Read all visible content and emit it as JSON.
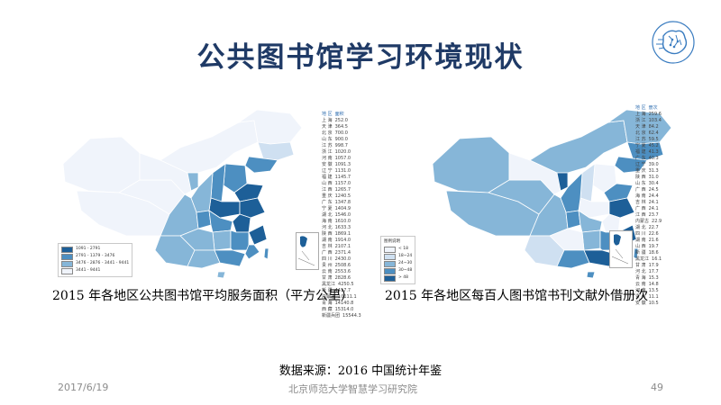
{
  "title": "公共图书馆学习环境现状",
  "colors": {
    "title": "#1f3a66",
    "shade_1": "#f0f4fb",
    "shade_2": "#cfe0f1",
    "shade_3": "#86b6d8",
    "shade_4": "#4d8fc1",
    "shade_5": "#1d5f98",
    "border": "#ffffff"
  },
  "map_left": {
    "caption": "2015 年各地区公共图书馆平均服务面积（平方公里）",
    "table_header": [
      "地 区",
      "面积"
    ],
    "table_rows": [
      [
        "上 海",
        "252.0"
      ],
      [
        "天 津",
        "364.5"
      ],
      [
        "北 京",
        "700.0"
      ],
      [
        "山 东",
        "900.0"
      ],
      [
        "江 苏",
        "998.7"
      ],
      [
        "浙 江",
        "1020.0"
      ],
      [
        "河 南",
        "1057.0"
      ],
      [
        "安 徽",
        "1091.3"
      ],
      [
        "辽 宁",
        "1131.0"
      ],
      [
        "福 建",
        "1145.7"
      ],
      [
        "山 西",
        "1157.0"
      ],
      [
        "江 西",
        "1265.7"
      ],
      [
        "重 庆",
        "1240.5"
      ],
      [
        "广 东",
        "1347.8"
      ],
      [
        "宁 夏",
        "1404.9"
      ],
      [
        "湖 北",
        "1546.0"
      ],
      [
        "海 南",
        "1610.0"
      ],
      [
        "河 北",
        "1633.3"
      ],
      [
        "陕 西",
        "1869.1"
      ],
      [
        "湖 南",
        "1914.0"
      ],
      [
        "吉 林",
        "2107.1"
      ],
      [
        "广 西",
        "2371.4"
      ],
      [
        "四 川",
        "2430.0"
      ],
      [
        "贵 州",
        "2508.6"
      ],
      [
        "云 南",
        "2553.6"
      ],
      [
        "甘 肃",
        "2828.6"
      ],
      [
        "黑龙江",
        "4250.5"
      ],
      [
        "新 疆",
        "4417.7"
      ],
      [
        "内蒙古",
        "10111.1"
      ],
      [
        "青 海",
        "14140.8"
      ],
      [
        "西 藏",
        "15314.0"
      ],
      [
        "新疆兵团",
        "15544.3"
      ]
    ],
    "range_legend": [
      "1091 - 2791",
      "2791 - 1379 - 3476",
      "3476 - 2876 - 3441 - 9441",
      "3441 - 9441"
    ],
    "inset_label": "南海诸岛"
  },
  "map_right": {
    "caption": "2015 年各地区每百人图书馆书刊文献外借册次",
    "table_header": [
      "地 区",
      "册次"
    ],
    "table_rows": [
      [
        "上 海",
        "259.6"
      ],
      [
        "浙 江",
        "103.4"
      ],
      [
        "天 津",
        "84.2"
      ],
      [
        "北 京",
        "62.4"
      ],
      [
        "江 苏",
        "59.5"
      ],
      [
        "宁 夏",
        "45.2"
      ],
      [
        "福 建",
        "41.3"
      ],
      [
        "广 东",
        "40.3"
      ],
      [
        "辽 宁",
        "39.0"
      ],
      [
        "重 庆",
        "31.3"
      ],
      [
        "陕 西",
        "31.0"
      ],
      [
        "山 东",
        "30.4"
      ],
      [
        "广 西",
        "24.5"
      ],
      [
        "海 南",
        "24.4"
      ],
      [
        "吉 林",
        "24.1"
      ],
      [
        "广 西",
        "24.1"
      ],
      [
        "江 西",
        "23.7"
      ],
      [
        "内蒙古",
        "22.9"
      ],
      [
        "湖 北",
        "22.7"
      ],
      [
        "四 川",
        "22.6"
      ],
      [
        "湖 南",
        "21.6"
      ],
      [
        "山 西",
        "19.7"
      ],
      [
        "新 疆",
        "18.6"
      ],
      [
        "黑龙江",
        "16.1"
      ],
      [
        "甘 肃",
        "17.9"
      ],
      [
        "河 北",
        "17.7"
      ],
      [
        "青 海",
        "15.3"
      ],
      [
        "云 南",
        "14.8"
      ],
      [
        "河 南",
        "13.5"
      ],
      [
        "贵 州",
        "11.1"
      ],
      [
        "安 徽",
        "10.5"
      ]
    ],
    "box_legend_title": "图例说明",
    "range_legend": [
      "< 18",
      "18~24",
      "24~30",
      "30~48",
      "> 48"
    ],
    "inset_label": "南海诸岛"
  },
  "source_text": "数据来源：2016 中国统计年鉴",
  "footer": {
    "date": "2017/6/19",
    "institute": "北京师范大学智慧学习研究院",
    "page": "49"
  }
}
